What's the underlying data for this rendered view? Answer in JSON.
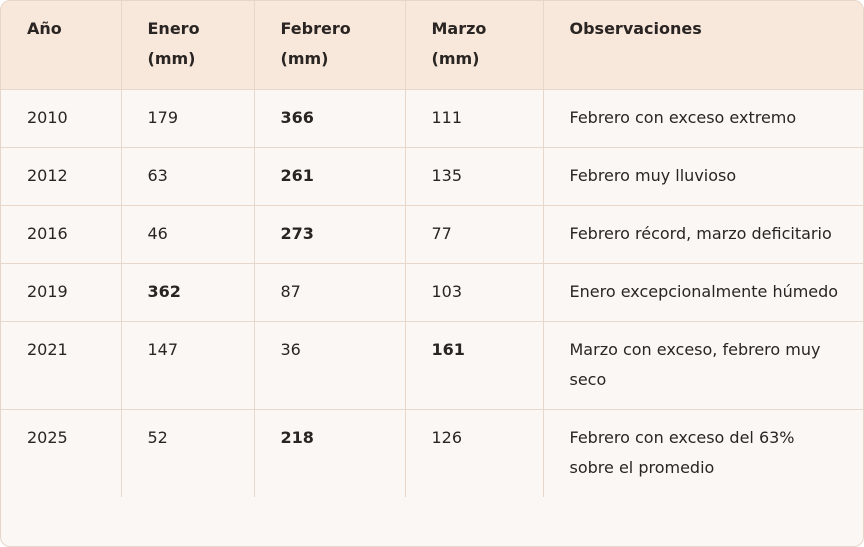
{
  "table": {
    "header": [
      "Año",
      "Enero (mm)",
      "Febrero (mm)",
      "Marzo (mm)",
      "Observaciones"
    ],
    "rows": [
      {
        "cells": [
          "2010",
          "179",
          "366",
          "111",
          "Febrero con exceso extremo"
        ],
        "bold": 2
      },
      {
        "cells": [
          "2012",
          "63",
          "261",
          "135",
          "Febrero muy lluvioso"
        ],
        "bold": 2
      },
      {
        "cells": [
          "2016",
          "46",
          "273",
          "77",
          "Febrero récord, marzo deficitario"
        ],
        "bold": 2
      },
      {
        "cells": [
          "2019",
          "362",
          "87",
          "103",
          "Enero excepcionalmente húmedo"
        ],
        "bold": 1
      },
      {
        "cells": [
          "2021",
          "147",
          "36",
          "161",
          "Marzo con exceso, febrero muy seco"
        ],
        "bold": 3
      },
      {
        "cells": [
          "2025",
          "52",
          "218",
          "126",
          "Febrero con exceso del 63% sobre el promedio"
        ],
        "bold": 2
      }
    ]
  }
}
